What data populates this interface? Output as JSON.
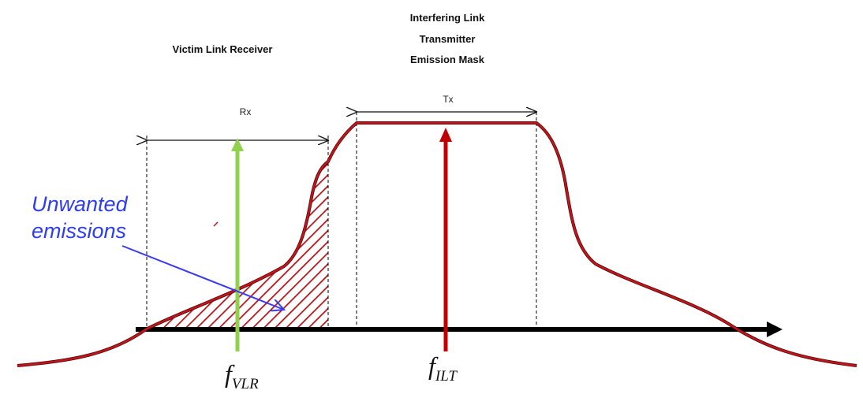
{
  "title_victim": "Victim Link Receiver",
  "title_interferer_line1": "Interfering Link",
  "title_interferer_line2": "Transmitter",
  "title_interferer_line3": "Emission Mask",
  "rx_label": "Rx",
  "tx_label": "Tx",
  "unwanted_line1": "Unwanted",
  "unwanted_line2": "emissions",
  "freq_vlr_main": "f",
  "freq_vlr_sub": "VLR",
  "freq_ilt_main": "f",
  "freq_ilt_sub": "ILT",
  "colors": {
    "mask_curve": "#c0161b",
    "hatch": "#b01418",
    "victim_arrow": "#92d050",
    "interferer_arrow": "#c00000",
    "unwanted_text": "#2e3cf2",
    "axis": "#000000"
  }
}
